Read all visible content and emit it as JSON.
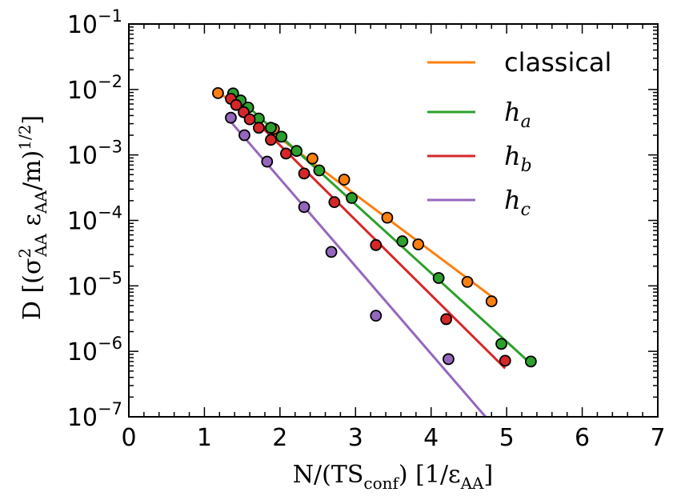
{
  "chart_data": {
    "type": "scatter",
    "title": "",
    "xlabel": "N/(TS_conf) [1/ε_AA]",
    "ylabel": "D [(σ²_AA ε_AA/m)^(1/2)]",
    "x_scale": "linear",
    "y_scale": "log",
    "xlim": [
      0,
      7
    ],
    "ylim": [
      1e-07,
      0.1
    ],
    "x_ticks": [
      "0",
      "1",
      "2",
      "3",
      "4",
      "5",
      "6",
      "7"
    ],
    "y_ticks": [
      {
        "base": "10",
        "exp": "−7"
      },
      {
        "base": "10",
        "exp": "−6"
      },
      {
        "base": "10",
        "exp": "−5"
      },
      {
        "base": "10",
        "exp": "−4"
      },
      {
        "base": "10",
        "exp": "−3"
      },
      {
        "base": "10",
        "exp": "−2"
      },
      {
        "base": "10",
        "exp": "−1"
      }
    ],
    "legend_position": "top-right",
    "series": [
      {
        "name": "classical",
        "label": {
          "main": "classical",
          "sub": ""
        },
        "color": "#ff7f0e",
        "points": [
          [
            1.18,
            0.0088
          ],
          [
            1.92,
            0.0025
          ],
          [
            2.43,
            0.00088
          ],
          [
            2.85,
            0.00042
          ],
          [
            3.42,
            0.00011
          ],
          [
            3.83,
            4.3e-05
          ],
          [
            4.48,
            1.15e-05
          ],
          [
            4.8,
            5.8e-06
          ]
        ],
        "fit": {
          "x": [
            1.18,
            4.83
          ],
          "y": [
            0.0092,
            6.5e-06
          ]
        }
      },
      {
        "name": "h_a",
        "label": {
          "main": "h",
          "sub": "a"
        },
        "color": "#2ca02c",
        "points": [
          [
            1.38,
            0.0087
          ],
          [
            1.48,
            0.0068
          ],
          [
            1.58,
            0.0053
          ],
          [
            1.72,
            0.0036
          ],
          [
            1.88,
            0.0026
          ],
          [
            2.02,
            0.0019
          ],
          [
            2.22,
            0.00115
          ],
          [
            2.52,
            0.00058
          ],
          [
            2.95,
            0.00022
          ],
          [
            3.62,
            4.8e-05
          ],
          [
            4.1,
            1.32e-05
          ],
          [
            4.93,
            1.3e-06
          ],
          [
            5.32,
            7e-07
          ]
        ],
        "fit": {
          "x": [
            1.38,
            5.3
          ],
          "y": [
            0.0088,
            6.8e-07
          ]
        }
      },
      {
        "name": "h_b",
        "label": {
          "main": "h",
          "sub": "b"
        },
        "color": "#d62728",
        "points": [
          [
            1.35,
            0.0072
          ],
          [
            1.42,
            0.0058
          ],
          [
            1.52,
            0.0045
          ],
          [
            1.6,
            0.0035
          ],
          [
            1.72,
            0.0026
          ],
          [
            1.88,
            0.0017
          ],
          [
            2.08,
            0.00105
          ],
          [
            2.32,
            0.00052
          ],
          [
            2.72,
            0.00019
          ],
          [
            3.27,
            4.2e-05
          ],
          [
            4.2,
            3.1e-06
          ],
          [
            4.98,
            7.2e-07
          ]
        ],
        "fit": {
          "x": [
            1.35,
            4.98
          ],
          "y": [
            0.0078,
            5.5e-07
          ]
        }
      },
      {
        "name": "h_c",
        "label": {
          "main": "h",
          "sub": "c"
        },
        "color": "#9467bd",
        "points": [
          [
            1.35,
            0.0037
          ],
          [
            1.53,
            0.002
          ],
          [
            1.83,
            0.00079
          ],
          [
            2.32,
            0.00016
          ],
          [
            2.68,
            3.3e-05
          ],
          [
            3.27,
            3.5e-06
          ],
          [
            4.23,
            7.6e-07
          ]
        ],
        "fit": {
          "x": [
            1.35,
            4.72
          ],
          "y": [
            0.0032,
            1e-07
          ]
        }
      }
    ]
  },
  "axes_labels": {
    "y_label": {
      "prefix": "D [(σ",
      "sigma_sup": "2",
      "sigma_sub": "AA",
      "eps": " ε",
      "eps_sub": "AA",
      "mid": "/m)",
      "exp": "1/2",
      "suffix": "]"
    },
    "x_label": {
      "prefix": "N/(TS",
      "sub": "conf",
      "mid": ") [1/ε",
      "sub2": "AA",
      "suffix": "]"
    }
  }
}
